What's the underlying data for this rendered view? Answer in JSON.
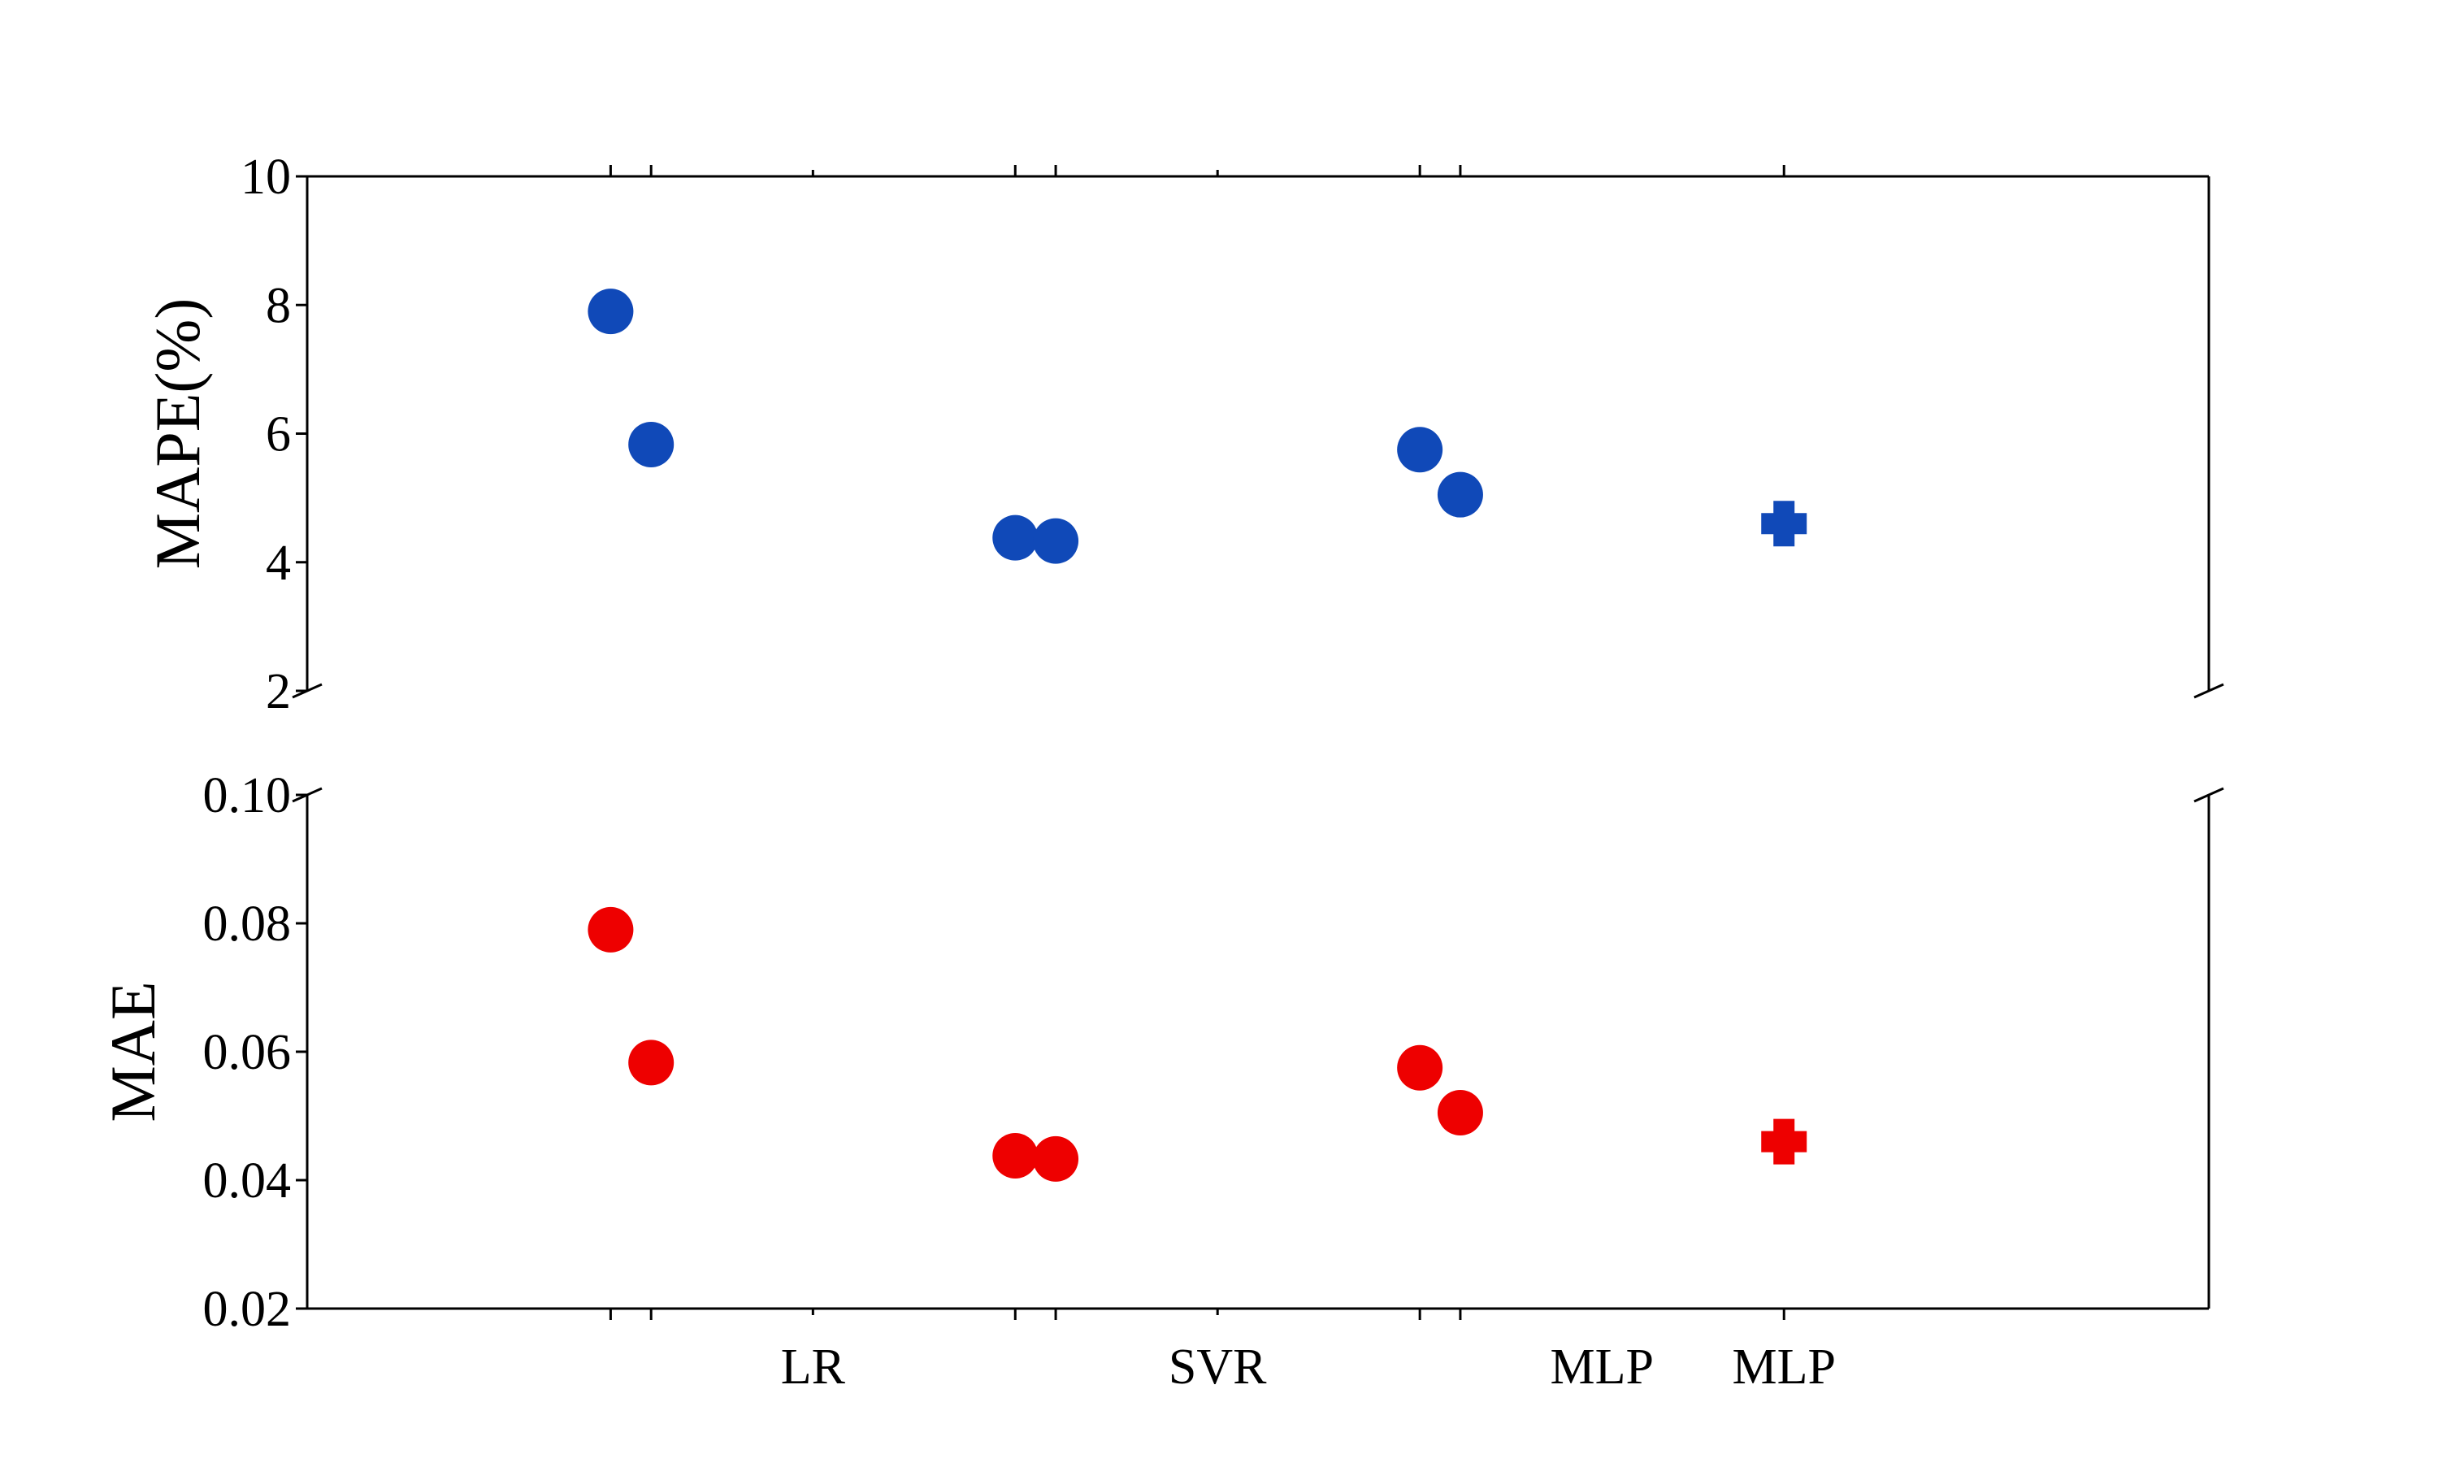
{
  "chart_data": [
    {
      "type": "scatter",
      "panel": "top",
      "xlabel": "",
      "ylabel": "MAPE(%)",
      "ylim": [
        2,
        10
      ],
      "yticks": [
        "2",
        "4",
        "6",
        "8",
        "10"
      ],
      "categories": [
        "LR",
        "SVR",
        "MLP",
        "MLP"
      ],
      "color": "#1049b8",
      "points": [
        {
          "x": 1.0,
          "y": 7.9,
          "marker": "circle"
        },
        {
          "x": 2.0,
          "y": 5.83,
          "marker": "circle"
        },
        {
          "x": 11.0,
          "y": 4.38,
          "marker": "circle"
        },
        {
          "x": 12.0,
          "y": 4.33,
          "marker": "circle"
        },
        {
          "x": 21.0,
          "y": 5.75,
          "marker": "circle"
        },
        {
          "x": 22.0,
          "y": 5.05,
          "marker": "circle"
        },
        {
          "x": 30.0,
          "y": 4.6,
          "marker": "plus"
        }
      ]
    },
    {
      "type": "scatter",
      "panel": "bottom",
      "xlabel": "",
      "ylabel": "MAE",
      "ylim": [
        0.02,
        0.1
      ],
      "yticks": [
        "0.02",
        "0.04",
        "0.06",
        "0.08",
        "0.10"
      ],
      "categories": [
        "LR",
        "SVR",
        "MLP",
        "MLP"
      ],
      "color": "#ee0000",
      "points": [
        {
          "x": 1.0,
          "y": 0.079,
          "marker": "circle"
        },
        {
          "x": 2.0,
          "y": 0.0583,
          "marker": "circle"
        },
        {
          "x": 11.0,
          "y": 0.0438,
          "marker": "circle"
        },
        {
          "x": 12.0,
          "y": 0.0433,
          "marker": "circle"
        },
        {
          "x": 21.0,
          "y": 0.0575,
          "marker": "circle"
        },
        {
          "x": 22.0,
          "y": 0.0505,
          "marker": "circle"
        },
        {
          "x": 30.0,
          "y": 0.046,
          "marker": "plus"
        }
      ]
    }
  ]
}
